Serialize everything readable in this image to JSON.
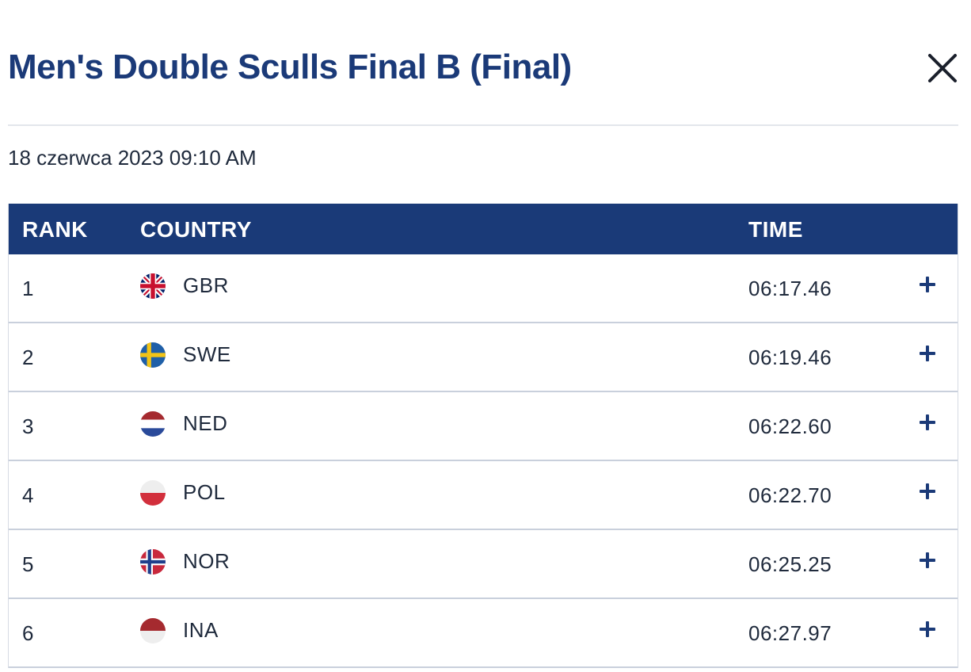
{
  "header": {
    "title": "Men's Double Sculls Final B (Final)",
    "close_icon": "close-icon"
  },
  "event": {
    "date": "18 czerwca 2023 09:10 AM"
  },
  "table": {
    "columns": [
      "RANK",
      "COUNTRY",
      "TIME"
    ],
    "rows": [
      {
        "rank": "1",
        "country": "GBR",
        "time": "06:17.46",
        "flag_icon": "gbr-flag-icon"
      },
      {
        "rank": "2",
        "country": "SWE",
        "time": "06:19.46",
        "flag_icon": "swe-flag-icon"
      },
      {
        "rank": "3",
        "country": "NED",
        "time": "06:22.60",
        "flag_icon": "ned-flag-icon"
      },
      {
        "rank": "4",
        "country": "POL",
        "time": "06:22.70",
        "flag_icon": "pol-flag-icon"
      },
      {
        "rank": "5",
        "country": "NOR",
        "time": "06:25.25",
        "flag_icon": "nor-flag-icon"
      },
      {
        "rank": "6",
        "country": "INA",
        "time": "06:27.97",
        "flag_icon": "ina-flag-icon"
      }
    ],
    "expand_icon": "plus-icon"
  },
  "colors": {
    "primary": "#1b3a78",
    "header_bg": "#1a3a78",
    "text": "#1f2a3c",
    "row_border": "#c9d0dc"
  }
}
